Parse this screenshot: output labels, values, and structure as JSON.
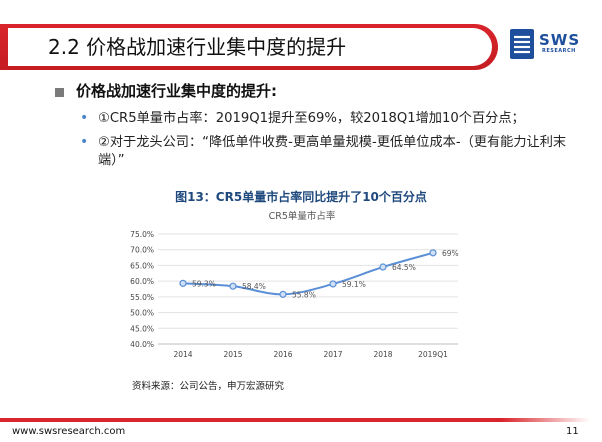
{
  "slide": {
    "title": "2.2 价格战加速行业集中度的提升",
    "heading": "价格战加速行业集中度的提升:",
    "bullets": [
      "①CR5单量市占率：2019Q1提升至69%，较2018Q1增加10个百分点；",
      "②对于龙头公司：“降低单件收费-更高单量规模-更低单位成本-（更有能力让利末端）”"
    ],
    "figure_caption": "图13：CR5单量市占率同比提升了10个百分点",
    "source": "资料来源：公司公告，申万宏源研究",
    "footer_url": "www.swsresearch.com",
    "page_number": "11"
  },
  "logo": {
    "word": "SWS",
    "sub": "RESEARCH"
  },
  "colors": {
    "accent_red": "#d9252b",
    "brand_blue": "#1e4f9c",
    "series": "#5b8fd6",
    "caption": "#1f497d"
  },
  "chart_data": {
    "type": "line",
    "title": "CR5单量市占率",
    "categories": [
      "2014",
      "2015",
      "2016",
      "2017",
      "2018",
      "2019Q1"
    ],
    "series": [
      {
        "values": [
          59.3,
          58.4,
          55.8,
          59.1,
          64.5,
          69.0
        ],
        "labels": [
          "59.3%",
          "58.4%",
          "55.8%",
          "59.1%",
          "64.5%",
          "69%"
        ]
      }
    ],
    "y_ticks": [
      "40.0%",
      "45.0%",
      "50.0%",
      "55.0%",
      "60.0%",
      "65.0%",
      "70.0%",
      "75.0%"
    ],
    "ylim": [
      40,
      75
    ],
    "grid": true,
    "smooth": true
  }
}
